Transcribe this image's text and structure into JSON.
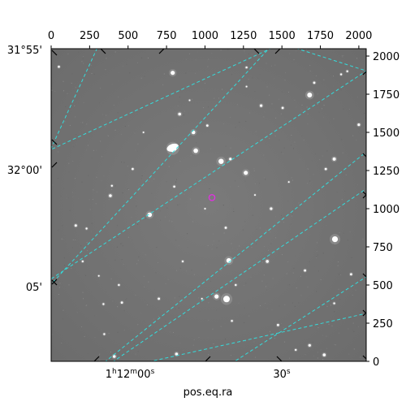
{
  "chart_data": {
    "type": "image",
    "xlabel": "pos.eq.ra",
    "ylabel": "",
    "pixel_axis": {
      "x_range": [
        0,
        2048
      ],
      "y_range": [
        0,
        2048
      ],
      "top_ticks": [
        0,
        250,
        500,
        750,
        1000,
        1250,
        1500,
        1750,
        2000
      ],
      "right_ticks": [
        0,
        250,
        500,
        750,
        1000,
        1250,
        1500,
        1750,
        2000
      ]
    },
    "world_axis": {
      "ra_ticks": [
        {
          "h": "1",
          "m": "12",
          "s": "00"
        },
        {
          "h": "",
          "m": "",
          "s": "30"
        }
      ],
      "dec_ticks": [
        "31°55'",
        "32°00'",
        "05'"
      ]
    },
    "grid": true,
    "grid_color": "#33dddd",
    "marker": {
      "shape": "circle",
      "color": "#dd33dd",
      "x": 1045,
      "y": 1073
    }
  }
}
